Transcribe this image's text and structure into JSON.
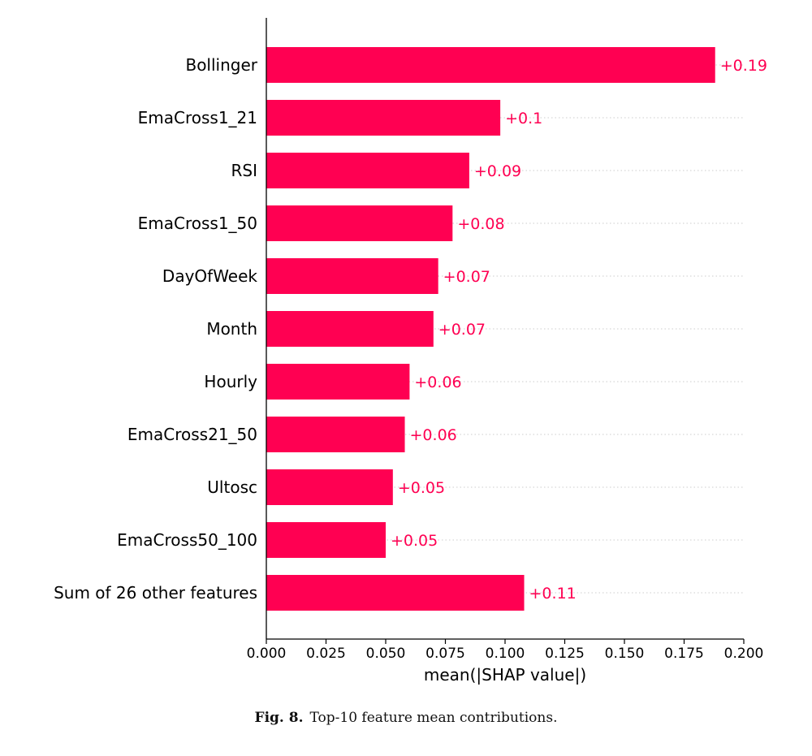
{
  "chart_data": {
    "type": "bar",
    "orientation": "horizontal",
    "categories": [
      "Bollinger",
      "EmaCross1_21",
      "RSI",
      "EmaCross1_50",
      "DayOfWeek",
      "Month",
      "Hourly",
      "EmaCross21_50",
      "Ultosc",
      "EmaCross50_100",
      "Sum of 26 other features"
    ],
    "values": [
      0.188,
      0.098,
      0.085,
      0.078,
      0.072,
      0.07,
      0.06,
      0.058,
      0.053,
      0.05,
      0.108
    ],
    "value_labels": [
      "+0.19",
      "+0.1",
      "+0.09",
      "+0.08",
      "+0.07",
      "+0.07",
      "+0.06",
      "+0.06",
      "+0.05",
      "+0.05",
      "+0.11"
    ],
    "xlabel": "mean(|SHAP value|)",
    "ylabel": "",
    "xlim": [
      0,
      0.2
    ],
    "xticks": [
      "0.000",
      "0.025",
      "0.050",
      "0.075",
      "0.100",
      "0.125",
      "0.150",
      "0.175",
      "0.200"
    ],
    "xtick_values": [
      0,
      0.025,
      0.05,
      0.075,
      0.1,
      0.125,
      0.15,
      0.175,
      0.2
    ],
    "grid": "dotted guide lines per row",
    "colors": {
      "bar": "#ff0052",
      "label": "#ff0052",
      "axis": "#000000",
      "guide": "#cccccc"
    }
  },
  "caption": {
    "label": "Fig. 8.",
    "text": "Top-10 feature mean contributions."
  }
}
